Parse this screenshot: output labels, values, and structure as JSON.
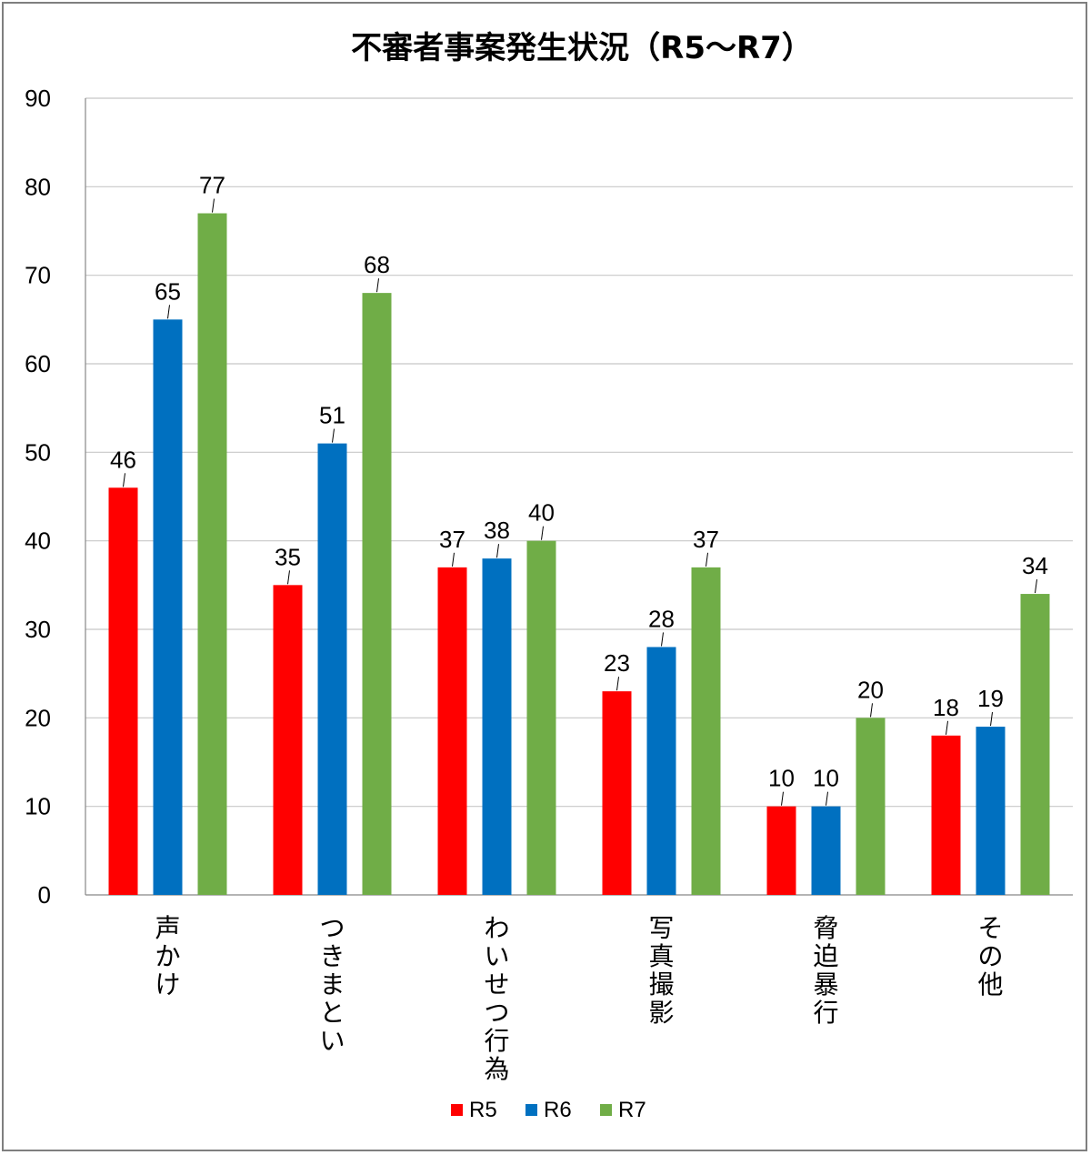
{
  "chart_data": {
    "type": "bar",
    "title": "不審者事案発生状況（R5～R7）",
    "xlabel": "",
    "ylabel": "",
    "ylim": [
      0,
      90
    ],
    "yticks": [
      0,
      10,
      20,
      30,
      40,
      50,
      60,
      70,
      80,
      90
    ],
    "grid": true,
    "legend_position": "bottom",
    "categories": [
      "声かけ",
      "つきまとい",
      "わいせつ行為",
      "写真撮影",
      "脅迫暴行",
      "その他"
    ],
    "series": [
      {
        "name": "R5",
        "color": "#ff0000",
        "values": [
          46,
          35,
          37,
          23,
          10,
          18
        ]
      },
      {
        "name": "R6",
        "color": "#0070c0",
        "values": [
          65,
          51,
          38,
          28,
          10,
          19
        ]
      },
      {
        "name": "R7",
        "color": "#70ad47",
        "values": [
          77,
          68,
          40,
          37,
          20,
          34
        ]
      }
    ]
  }
}
